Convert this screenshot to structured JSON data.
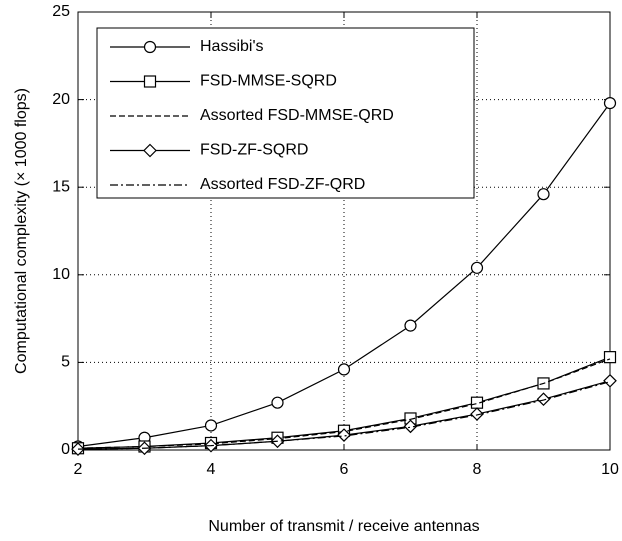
{
  "chart_data": {
    "type": "line",
    "xlabel": "Number of transmit / receive antennas",
    "ylabel": "Computational complexity (× 1000 flops)",
    "x": [
      2,
      3,
      4,
      5,
      6,
      7,
      8,
      9,
      10
    ],
    "series": [
      {
        "name": "Hassibi's",
        "color": "#000000",
        "linestyle": "solid",
        "marker": "circle",
        "values": [
          0.2,
          0.7,
          1.4,
          2.7,
          4.6,
          7.1,
          10.4,
          14.6,
          19.8
        ]
      },
      {
        "name": "FSD-MMSE-SQRD",
        "color": "#000000",
        "linestyle": "solid",
        "marker": "square",
        "values": [
          0.1,
          0.2,
          0.4,
          0.7,
          1.1,
          1.8,
          2.7,
          3.8,
          5.3
        ]
      },
      {
        "name": "Assorted FSD-MMSE-QRD",
        "color": "#000000",
        "linestyle": "dashed",
        "values": [
          0.1,
          0.2,
          0.35,
          0.65,
          1.05,
          1.75,
          2.65,
          3.8,
          5.2
        ]
      },
      {
        "name": "FSD-ZF-SQRD",
        "color": "#000000",
        "linestyle": "solid",
        "marker": "diamond",
        "values": [
          0.05,
          0.1,
          0.25,
          0.5,
          0.85,
          1.35,
          2.05,
          2.9,
          3.95
        ]
      },
      {
        "name": "Assorted FSD-ZF-QRD",
        "color": "#000000",
        "linestyle": "dashdot",
        "values": [
          0.05,
          0.1,
          0.25,
          0.5,
          0.8,
          1.3,
          2.0,
          2.85,
          3.9
        ]
      }
    ],
    "xlim": [
      2,
      10
    ],
    "xticks": [
      2,
      4,
      6,
      8,
      10
    ],
    "ylim": [
      0,
      25
    ],
    "yticks": [
      0,
      5,
      10,
      15,
      20,
      25
    ],
    "grid": true,
    "legend": "upper left"
  }
}
